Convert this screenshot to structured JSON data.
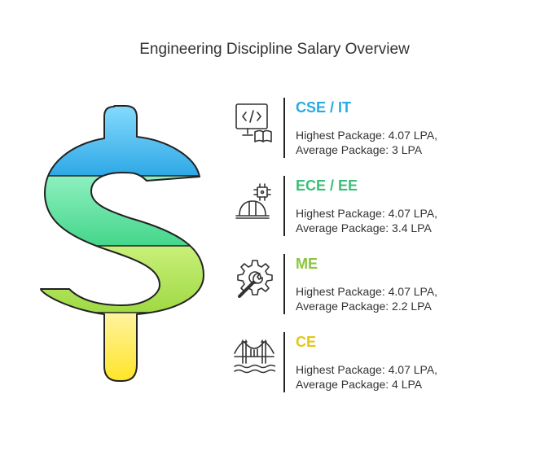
{
  "title": "Engineering Discipline Salary Overview",
  "categories": [
    {
      "name": "CSE / IT",
      "color": "#29ABE2",
      "icon": "laptop-code-book-icon",
      "highest": "Highest Package: 4.07 LPA,",
      "average": "Average Package: 3 LPA"
    },
    {
      "name": "ECE / EE",
      "color": "#3DBE7A",
      "icon": "chip-helmet-icon",
      "highest": "Highest Package: 4.07 LPA,",
      "average": "Average Package: 3.4 LPA"
    },
    {
      "name": "ME",
      "color": "#8BC53F",
      "icon": "gear-wrench-icon",
      "highest": "Highest Package: 4.07 LPA,",
      "average": "Average Package: 2.2 LPA"
    },
    {
      "name": "CE",
      "color": "#E2C817",
      "icon": "bridge-icon",
      "highest": "Highest Package: 4.07 LPA,",
      "average": "Average Package: 4 LPA"
    }
  ],
  "dollar_band_colors": [
    "#29B6F6",
    "#7FE8A8",
    "#B5E655",
    "#FFE033"
  ]
}
